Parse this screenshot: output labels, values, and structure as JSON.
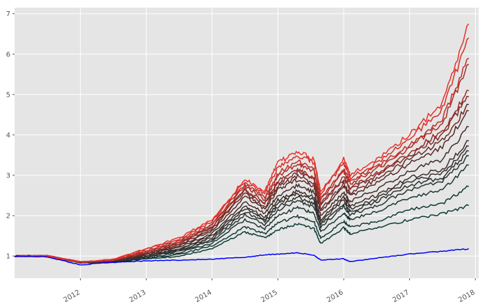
{
  "chart_data": {
    "type": "line",
    "title": "",
    "xlabel": "",
    "ylabel": "",
    "grid": true,
    "legend": "none",
    "xlim": [
      2011.0,
      2018.05
    ],
    "ylim": [
      0.45,
      7.15
    ],
    "x_ticks": [
      {
        "value": 2012,
        "label": "2012"
      },
      {
        "value": 2013,
        "label": "2013"
      },
      {
        "value": 2014,
        "label": "2014"
      },
      {
        "value": 2015,
        "label": "2015"
      },
      {
        "value": 2016,
        "label": "2016"
      },
      {
        "value": 2017,
        "label": "2017"
      },
      {
        "value": 2018,
        "label": "2018"
      }
    ],
    "y_ticks": [
      {
        "value": 1,
        "label": "1"
      },
      {
        "value": 2,
        "label": "2"
      },
      {
        "value": 3,
        "label": "3"
      },
      {
        "value": 4,
        "label": "4"
      },
      {
        "value": 5,
        "label": "5"
      },
      {
        "value": 6,
        "label": "6"
      },
      {
        "value": 7,
        "label": "7"
      }
    ],
    "colors": {
      "background": "#e5e5e5",
      "grid": "#ffffff",
      "benchmark": "#0000ff",
      "low": "#0a3a35",
      "mid": "#4a2a28",
      "high": "#e8302a"
    },
    "x": [
      2011.0,
      2011.5,
      2012.0,
      2012.5,
      2013.0,
      2013.5,
      2014.0,
      2014.5,
      2014.8,
      2015.0,
      2015.3,
      2015.55,
      2015.65,
      2016.0,
      2016.1,
      2016.5,
      2017.0,
      2017.5,
      2017.9
    ],
    "benchmark": {
      "values": [
        1.0,
        0.98,
        0.78,
        0.85,
        0.88,
        0.9,
        0.92,
        0.97,
        1.03,
        1.05,
        1.08,
        1.02,
        0.9,
        0.93,
        0.86,
        0.95,
        1.05,
        1.12,
        1.18
      ]
    },
    "strategies": [
      {
        "values": [
          1.0,
          1.0,
          0.85,
          0.92,
          1.18,
          1.45,
          1.9,
          2.9,
          2.6,
          3.3,
          3.6,
          3.4,
          2.6,
          3.4,
          3.0,
          3.4,
          4.0,
          4.8,
          6.75
        ]
      },
      {
        "values": [
          1.0,
          1.0,
          0.85,
          0.91,
          1.16,
          1.42,
          1.85,
          2.85,
          2.55,
          3.2,
          3.5,
          3.3,
          2.55,
          3.3,
          2.95,
          3.3,
          3.9,
          4.65,
          6.4
        ]
      },
      {
        "values": [
          1.0,
          1.0,
          0.85,
          0.9,
          1.13,
          1.37,
          1.8,
          2.78,
          2.45,
          3.05,
          3.35,
          3.15,
          2.45,
          3.15,
          2.85,
          3.2,
          3.75,
          4.4,
          5.9
        ]
      },
      {
        "values": [
          1.0,
          1.0,
          0.85,
          0.9,
          1.11,
          1.35,
          1.77,
          2.74,
          2.4,
          2.97,
          3.27,
          3.08,
          2.4,
          3.08,
          2.8,
          3.15,
          3.7,
          4.3,
          5.75
        ]
      },
      {
        "values": [
          1.0,
          1.0,
          0.85,
          0.89,
          1.09,
          1.32,
          1.72,
          2.66,
          2.32,
          2.85,
          3.15,
          2.95,
          2.3,
          2.95,
          2.7,
          3.05,
          3.55,
          4.1,
          5.1
        ]
      },
      {
        "values": [
          1.0,
          1.0,
          0.85,
          0.89,
          1.08,
          1.3,
          1.7,
          2.62,
          2.28,
          2.8,
          3.08,
          2.9,
          2.25,
          2.9,
          2.65,
          3.0,
          3.5,
          4.0,
          4.95
        ]
      },
      {
        "values": [
          1.0,
          1.0,
          0.85,
          0.88,
          1.06,
          1.27,
          1.66,
          2.55,
          2.2,
          2.72,
          2.98,
          2.8,
          2.15,
          2.8,
          2.55,
          2.9,
          3.4,
          3.85,
          4.75
        ]
      },
      {
        "values": [
          1.0,
          1.0,
          0.85,
          0.88,
          1.05,
          1.25,
          1.62,
          2.48,
          2.15,
          2.65,
          2.9,
          2.72,
          2.1,
          2.72,
          2.48,
          2.8,
          3.3,
          3.7,
          4.6
        ]
      },
      {
        "values": [
          1.0,
          1.0,
          0.84,
          0.87,
          1.03,
          1.21,
          1.56,
          2.35,
          2.05,
          2.5,
          2.75,
          2.58,
          2.0,
          2.58,
          2.35,
          2.65,
          3.1,
          3.4,
          4.2
        ]
      },
      {
        "values": [
          1.0,
          1.0,
          0.84,
          0.87,
          1.01,
          1.18,
          1.5,
          2.25,
          1.95,
          2.38,
          2.62,
          2.45,
          1.9,
          2.45,
          2.25,
          2.5,
          2.95,
          3.15,
          3.85
        ]
      },
      {
        "values": [
          1.0,
          1.0,
          0.84,
          0.86,
          1.0,
          1.16,
          1.46,
          2.18,
          1.9,
          2.3,
          2.55,
          2.38,
          1.85,
          2.38,
          2.18,
          2.42,
          2.85,
          3.05,
          3.72
        ]
      },
      {
        "values": [
          1.0,
          1.0,
          0.84,
          0.86,
          0.99,
          1.14,
          1.42,
          2.1,
          1.85,
          2.22,
          2.45,
          2.3,
          1.78,
          2.3,
          2.1,
          2.35,
          2.75,
          2.95,
          3.6
        ]
      },
      {
        "values": [
          1.0,
          1.0,
          0.84,
          0.85,
          0.98,
          1.12,
          1.38,
          2.02,
          1.78,
          2.14,
          2.36,
          2.22,
          1.72,
          2.22,
          2.02,
          2.25,
          2.65,
          2.85,
          3.48
        ]
      },
      {
        "values": [
          1.0,
          1.0,
          0.84,
          0.85,
          0.96,
          1.08,
          1.32,
          1.9,
          1.68,
          2.0,
          2.2,
          2.05,
          1.6,
          2.05,
          1.9,
          2.1,
          2.45,
          2.65,
          3.25
        ]
      },
      {
        "values": [
          1.0,
          1.0,
          0.84,
          0.84,
          0.94,
          1.04,
          1.25,
          1.72,
          1.55,
          1.82,
          1.98,
          1.85,
          1.45,
          1.85,
          1.72,
          1.85,
          2.15,
          2.3,
          2.72
        ]
      },
      {
        "values": [
          1.0,
          1.0,
          0.84,
          0.84,
          0.92,
          1.0,
          1.18,
          1.6,
          1.45,
          1.65,
          1.8,
          1.68,
          1.3,
          1.7,
          1.55,
          1.7,
          1.9,
          2.05,
          2.25
        ]
      }
    ]
  }
}
